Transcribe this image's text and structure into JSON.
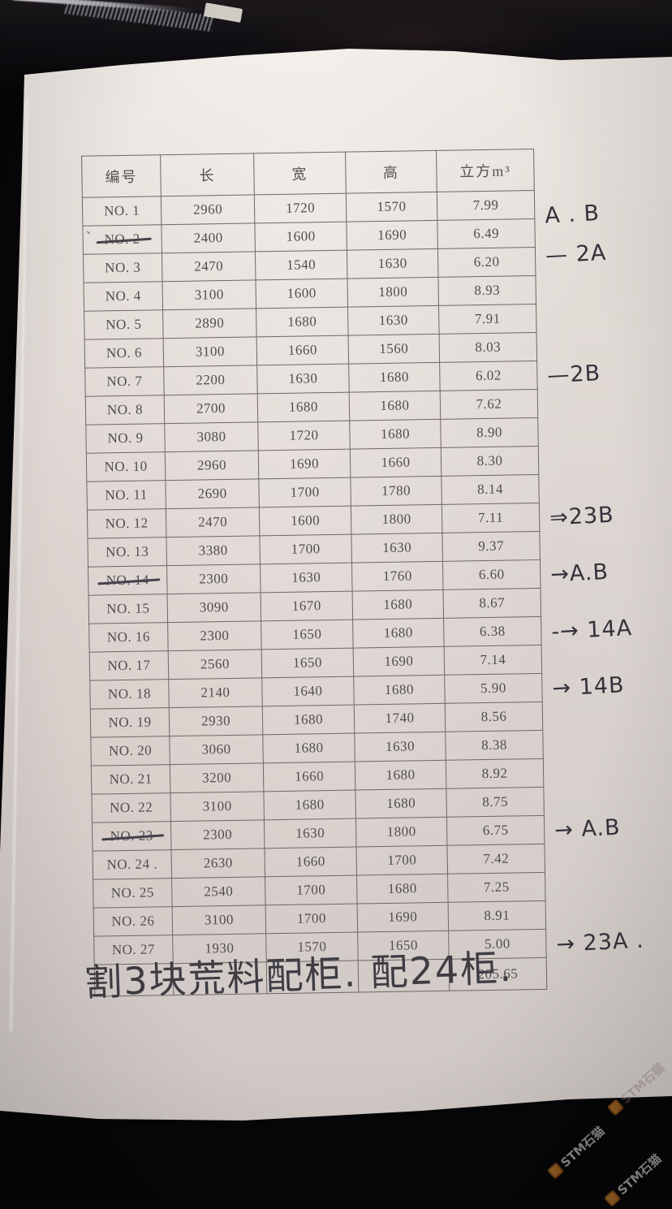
{
  "photo": {
    "background_color": "#060507",
    "paper_color": "#dcd6d2",
    "table_line_color": "#6e6765",
    "print_ink_color": "#514c4e",
    "handwriting_ink_color": "#33323a",
    "watermark_accent_color": "#e8923a"
  },
  "table": {
    "headers": [
      "编号",
      "长",
      "宽",
      "高",
      "立方m³"
    ],
    "rows": [
      {
        "no": "NO. 1",
        "l": "2960",
        "w": "1720",
        "h": "1570",
        "v": "7.99",
        "struck": false,
        "ann": null
      },
      {
        "no": "NO. 2",
        "l": "2400",
        "w": "1600",
        "h": "1690",
        "v": "6.49",
        "struck": true,
        "ann": "A . B",
        "dy": "-22px",
        "pre": "`"
      },
      {
        "no": "NO. 3",
        "l": "2470",
        "w": "1540",
        "h": "1630",
        "v": "6.20",
        "struck": false,
        "ann": "—  2A",
        "dy": "-8px"
      },
      {
        "no": "NO. 4",
        "l": "3100",
        "w": "1600",
        "h": "1800",
        "v": "8.93",
        "struck": false,
        "ann": null
      },
      {
        "no": "NO. 5",
        "l": "2890",
        "w": "1680",
        "h": "1630",
        "v": "7.91",
        "struck": false,
        "ann": null
      },
      {
        "no": "NO. 6",
        "l": "3100",
        "w": "1660",
        "h": "1560",
        "v": "8.03",
        "struck": false,
        "ann": null
      },
      {
        "no": "NO. 7",
        "l": "2200",
        "w": "1630",
        "h": "1680",
        "v": "6.02",
        "struck": false,
        "ann": "—2B"
      },
      {
        "no": "NO. 8",
        "l": "2700",
        "w": "1680",
        "h": "1680",
        "v": "7.62",
        "struck": false,
        "ann": null
      },
      {
        "no": "NO. 9",
        "l": "3080",
        "w": "1720",
        "h": "1680",
        "v": "8.90",
        "struck": false,
        "ann": null
      },
      {
        "no": "NO. 10",
        "l": "2960",
        "w": "1690",
        "h": "1660",
        "v": "8.30",
        "struck": false,
        "ann": null
      },
      {
        "no": "NO. 11",
        "l": "2690",
        "w": "1700",
        "h": "1780",
        "v": "8.14",
        "struck": false,
        "ann": null
      },
      {
        "no": "NO. 12",
        "l": "2470",
        "w": "1600",
        "h": "1800",
        "v": "7.11",
        "struck": false,
        "ann": "⇒23B"
      },
      {
        "no": "NO. 13",
        "l": "3380",
        "w": "1700",
        "h": "1630",
        "v": "9.37",
        "struck": false,
        "ann": null
      },
      {
        "no": "NO. 14",
        "l": "2300",
        "w": "1630",
        "h": "1760",
        "v": "6.60",
        "struck": true,
        "ann": "→A.B"
      },
      {
        "no": "NO. 15",
        "l": "3090",
        "w": "1670",
        "h": "1680",
        "v": "8.67",
        "struck": false,
        "ann": null
      },
      {
        "no": "NO. 16",
        "l": "2300",
        "w": "1650",
        "h": "1680",
        "v": "6.38",
        "struck": false,
        "ann": "-→ 14A"
      },
      {
        "no": "NO. 17",
        "l": "2560",
        "w": "1650",
        "h": "1690",
        "v": "7.14",
        "struck": false,
        "ann": null
      },
      {
        "no": "NO. 18",
        "l": "2140",
        "w": "1640",
        "h": "1680",
        "v": "5.90",
        "struck": false,
        "ann": "→ 14B"
      },
      {
        "no": "NO. 19",
        "l": "2930",
        "w": "1680",
        "h": "1740",
        "v": "8.56",
        "struck": false,
        "ann": null
      },
      {
        "no": "NO. 20",
        "l": "3060",
        "w": "1680",
        "h": "1630",
        "v": "8.38",
        "struck": false,
        "ann": null
      },
      {
        "no": "NO. 21",
        "l": "3200",
        "w": "1660",
        "h": "1680",
        "v": "8.92",
        "struck": false,
        "ann": null
      },
      {
        "no": "NO. 22",
        "l": "3100",
        "w": "1680",
        "h": "1680",
        "v": "8.75",
        "struck": false,
        "ann": null
      },
      {
        "no": "NO. 23",
        "l": "2300",
        "w": "1630",
        "h": "1800",
        "v": "6.75",
        "struck": true,
        "ann": "→ A.B"
      },
      {
        "no": "NO. 24 .",
        "l": "2630",
        "w": "1660",
        "h": "1700",
        "v": "7.42",
        "struck": false,
        "ann": null
      },
      {
        "no": "NO. 25",
        "l": "2540",
        "w": "1700",
        "h": "1680",
        "v": "7.25",
        "struck": false,
        "ann": null
      },
      {
        "no": "NO. 26",
        "l": "3100",
        "w": "1700",
        "h": "1690",
        "v": "8.91",
        "struck": false,
        "ann": null
      },
      {
        "no": "NO. 27",
        "l": "1930",
        "w": "1570",
        "h": "1650",
        "v": "5.00",
        "struck": false,
        "ann": "→ 23A ."
      }
    ],
    "total_value": "205.65"
  },
  "footnote": {
    "text": "割3块荒料配柜. 配24柜."
  },
  "watermark": {
    "text": "STM石猫"
  }
}
